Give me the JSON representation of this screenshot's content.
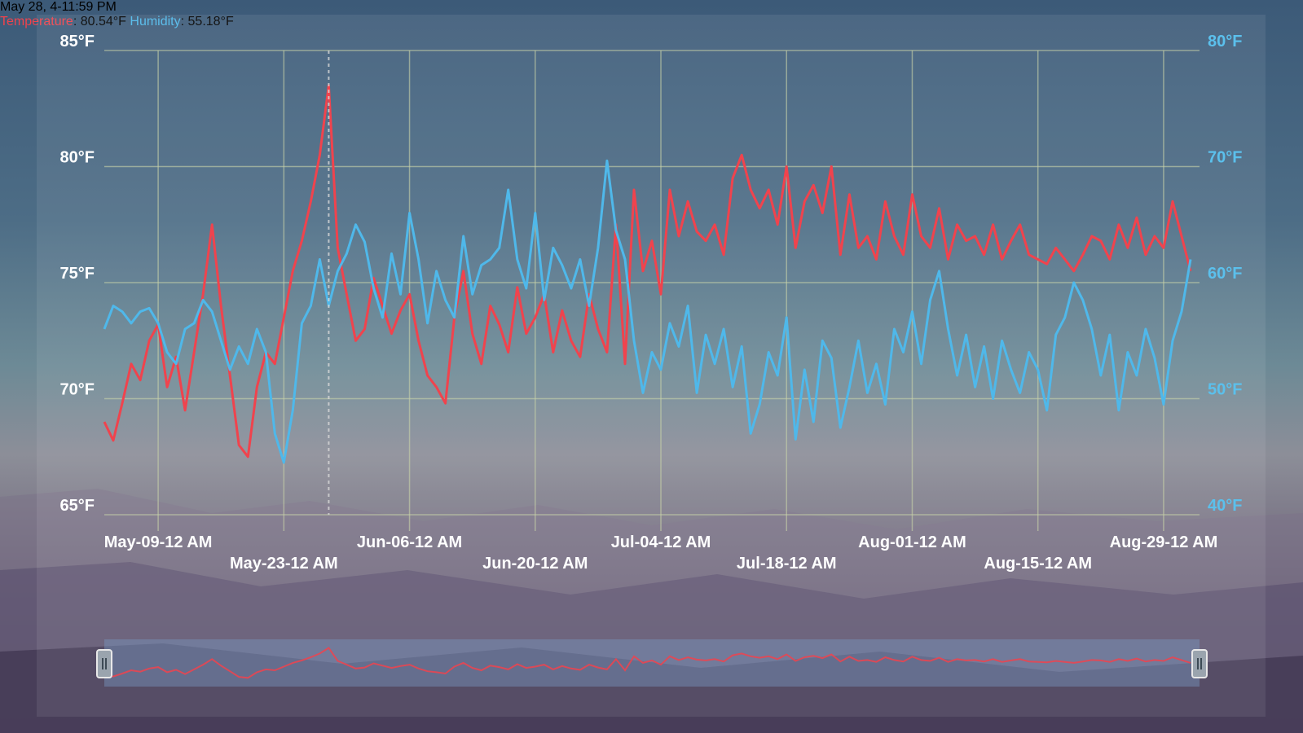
{
  "colors": {
    "temperature": "#f0434d",
    "humidity": "#4fb8ea",
    "grid": "#c9d3a9",
    "text": "#ffffff"
  },
  "readout": {
    "date": "May 28, 4-11:59 PM",
    "temp_label": "Temperature",
    "temp_value": "80.54°F",
    "hum_label": "Humidity",
    "hum_value": "55.18°F"
  },
  "chart_data": {
    "type": "line",
    "x_start": "2024-05-03",
    "x_end": "2024-09-02",
    "y_left": {
      "ticks": [
        "65°F",
        "70°F",
        "75°F",
        "80°F",
        "85°F"
      ],
      "range": [
        65,
        85
      ]
    },
    "y_right": {
      "ticks": [
        "40°F",
        "50°F",
        "60°F",
        "70°F",
        "80°F"
      ],
      "range": [
        40,
        80
      ]
    },
    "x_ticks": [
      {
        "label": "May-09-12 AM",
        "date": "2024-05-09",
        "row": 1
      },
      {
        "label": "May-23-12 AM",
        "date": "2024-05-23",
        "row": 2
      },
      {
        "label": "Jun-06-12 AM",
        "date": "2024-06-06",
        "row": 1
      },
      {
        "label": "Jun-20-12 AM",
        "date": "2024-06-20",
        "row": 2
      },
      {
        "label": "Jul-04-12 AM",
        "date": "2024-07-04",
        "row": 1
      },
      {
        "label": "Jul-18-12 AM",
        "date": "2024-07-18",
        "row": 2
      },
      {
        "label": "Aug-01-12 AM",
        "date": "2024-08-01",
        "row": 1
      },
      {
        "label": "Aug-15-12 AM",
        "date": "2024-08-15",
        "row": 2
      },
      {
        "label": "Aug-29-12 AM",
        "date": "2024-08-29",
        "row": 1
      }
    ],
    "crosshair_date": "2024-05-28",
    "grid": true,
    "series": [
      {
        "name": "Temperature",
        "axis": "left",
        "x": [
          "2024-05-03",
          "2024-05-04",
          "2024-05-05",
          "2024-05-06",
          "2024-05-07",
          "2024-05-08",
          "2024-05-09",
          "2024-05-10",
          "2024-05-11",
          "2024-05-12",
          "2024-05-13",
          "2024-05-14",
          "2024-05-15",
          "2024-05-16",
          "2024-05-17",
          "2024-05-18",
          "2024-05-19",
          "2024-05-20",
          "2024-05-21",
          "2024-05-22",
          "2024-05-23",
          "2024-05-24",
          "2024-05-25",
          "2024-05-26",
          "2024-05-27",
          "2024-05-28",
          "2024-05-29",
          "2024-05-30",
          "2024-05-31",
          "2024-06-01",
          "2024-06-02",
          "2024-06-03",
          "2024-06-04",
          "2024-06-05",
          "2024-06-06",
          "2024-06-07",
          "2024-06-08",
          "2024-06-09",
          "2024-06-10",
          "2024-06-11",
          "2024-06-12",
          "2024-06-13",
          "2024-06-14",
          "2024-06-15",
          "2024-06-16",
          "2024-06-17",
          "2024-06-18",
          "2024-06-19",
          "2024-06-20",
          "2024-06-21",
          "2024-06-22",
          "2024-06-23",
          "2024-06-24",
          "2024-06-25",
          "2024-06-26",
          "2024-06-27",
          "2024-06-28",
          "2024-06-29",
          "2024-06-30",
          "2024-07-01",
          "2024-07-02",
          "2024-07-03",
          "2024-07-04",
          "2024-07-05",
          "2024-07-06",
          "2024-07-07",
          "2024-07-08",
          "2024-07-09",
          "2024-07-10",
          "2024-07-11",
          "2024-07-12",
          "2024-07-13",
          "2024-07-14",
          "2024-07-15",
          "2024-07-16",
          "2024-07-17",
          "2024-07-18",
          "2024-07-19",
          "2024-07-20",
          "2024-07-21",
          "2024-07-22",
          "2024-07-23",
          "2024-07-24",
          "2024-07-25",
          "2024-07-26",
          "2024-07-27",
          "2024-07-28",
          "2024-07-29",
          "2024-07-30",
          "2024-07-31",
          "2024-08-01",
          "2024-08-02",
          "2024-08-03",
          "2024-08-04",
          "2024-08-05",
          "2024-08-06",
          "2024-08-07",
          "2024-08-08",
          "2024-08-09",
          "2024-08-10",
          "2024-08-11",
          "2024-08-12",
          "2024-08-13",
          "2024-08-14",
          "2024-08-15",
          "2024-08-16",
          "2024-08-17",
          "2024-08-18",
          "2024-08-19",
          "2024-08-20",
          "2024-08-21",
          "2024-08-22",
          "2024-08-23",
          "2024-08-24",
          "2024-08-25",
          "2024-08-26",
          "2024-08-27",
          "2024-08-28",
          "2024-08-29",
          "2024-08-30",
          "2024-08-31",
          "2024-09-01"
        ],
        "values": [
          69.0,
          68.2,
          69.8,
          71.5,
          70.8,
          72.5,
          73.2,
          70.5,
          71.8,
          69.5,
          72.0,
          74.5,
          77.5,
          74.0,
          71.0,
          68.0,
          67.5,
          70.5,
          72.0,
          71.5,
          73.5,
          75.5,
          76.8,
          78.5,
          80.5,
          83.5,
          76.5,
          74.5,
          72.5,
          73.0,
          75.2,
          74.0,
          72.8,
          73.8,
          74.5,
          72.5,
          71.0,
          70.5,
          69.8,
          73.5,
          75.5,
          72.8,
          71.5,
          74.0,
          73.2,
          72.0,
          74.8,
          72.8,
          73.5,
          74.5,
          72.0,
          73.8,
          72.5,
          71.8,
          74.5,
          73.0,
          72.0,
          77.5,
          71.5,
          79.0,
          75.5,
          76.8,
          74.5,
          79.0,
          77.0,
          78.5,
          77.2,
          76.8,
          77.5,
          76.2,
          79.5,
          80.5,
          79.0,
          78.2,
          79.0,
          77.5,
          80.0,
          76.5,
          78.5,
          79.2,
          78.0,
          80.0,
          76.2,
          78.8,
          76.5,
          77.0,
          76.0,
          78.5,
          77.0,
          76.2,
          78.8,
          77.0,
          76.5,
          78.2,
          76.0,
          77.5,
          76.8,
          77.0,
          76.2,
          77.5,
          76.0,
          76.8,
          77.5,
          76.2,
          76.0,
          75.8,
          76.5,
          76.0,
          75.5,
          76.2,
          77.0,
          76.8,
          76.0,
          77.5,
          76.5,
          77.8,
          76.2,
          77.0,
          76.5,
          78.5,
          77.0,
          75.5
        ]
      },
      {
        "name": "Humidity",
        "axis": "right",
        "x": [
          "2024-05-03",
          "2024-05-04",
          "2024-05-05",
          "2024-05-06",
          "2024-05-07",
          "2024-05-08",
          "2024-05-09",
          "2024-05-10",
          "2024-05-11",
          "2024-05-12",
          "2024-05-13",
          "2024-05-14",
          "2024-05-15",
          "2024-05-16",
          "2024-05-17",
          "2024-05-18",
          "2024-05-19",
          "2024-05-20",
          "2024-05-21",
          "2024-05-22",
          "2024-05-23",
          "2024-05-24",
          "2024-05-25",
          "2024-05-26",
          "2024-05-27",
          "2024-05-28",
          "2024-05-29",
          "2024-05-30",
          "2024-05-31",
          "2024-06-01",
          "2024-06-02",
          "2024-06-03",
          "2024-06-04",
          "2024-06-05",
          "2024-06-06",
          "2024-06-07",
          "2024-06-08",
          "2024-06-09",
          "2024-06-10",
          "2024-06-11",
          "2024-06-12",
          "2024-06-13",
          "2024-06-14",
          "2024-06-15",
          "2024-06-16",
          "2024-06-17",
          "2024-06-18",
          "2024-06-19",
          "2024-06-20",
          "2024-06-21",
          "2024-06-22",
          "2024-06-23",
          "2024-06-24",
          "2024-06-25",
          "2024-06-26",
          "2024-06-27",
          "2024-06-28",
          "2024-06-29",
          "2024-06-30",
          "2024-07-01",
          "2024-07-02",
          "2024-07-03",
          "2024-07-04",
          "2024-07-05",
          "2024-07-06",
          "2024-07-07",
          "2024-07-08",
          "2024-07-09",
          "2024-07-10",
          "2024-07-11",
          "2024-07-12",
          "2024-07-13",
          "2024-07-14",
          "2024-07-15",
          "2024-07-16",
          "2024-07-17",
          "2024-07-18",
          "2024-07-19",
          "2024-07-20",
          "2024-07-21",
          "2024-07-22",
          "2024-07-23",
          "2024-07-24",
          "2024-07-25",
          "2024-07-26",
          "2024-07-27",
          "2024-07-28",
          "2024-07-29",
          "2024-07-30",
          "2024-07-31",
          "2024-08-01",
          "2024-08-02",
          "2024-08-03",
          "2024-08-04",
          "2024-08-05",
          "2024-08-06",
          "2024-08-07",
          "2024-08-08",
          "2024-08-09",
          "2024-08-10",
          "2024-08-11",
          "2024-08-12",
          "2024-08-13",
          "2024-08-14",
          "2024-08-15",
          "2024-08-16",
          "2024-08-17",
          "2024-08-18",
          "2024-08-19",
          "2024-08-20",
          "2024-08-21",
          "2024-08-22",
          "2024-08-23",
          "2024-08-24",
          "2024-08-25",
          "2024-08-26",
          "2024-08-27",
          "2024-08-28",
          "2024-08-29",
          "2024-08-30",
          "2024-08-31",
          "2024-09-01"
        ],
        "values": [
          56.0,
          58.0,
          57.5,
          56.5,
          57.5,
          57.8,
          56.5,
          54.0,
          53.0,
          56.0,
          56.5,
          58.5,
          57.5,
          55.0,
          52.5,
          54.5,
          53.0,
          56.0,
          54.0,
          47.0,
          44.5,
          49.0,
          56.5,
          58.0,
          62.0,
          58.0,
          61.0,
          62.5,
          65.0,
          63.5,
          59.5,
          57.0,
          62.5,
          59.0,
          66.0,
          62.0,
          56.5,
          61.0,
          58.5,
          57.0,
          64.0,
          59.0,
          61.5,
          62.0,
          63.0,
          68.0,
          62.0,
          59.5,
          66.0,
          58.5,
          63.0,
          61.5,
          59.5,
          62.0,
          58.0,
          63.0,
          70.5,
          64.5,
          62.0,
          55.0,
          50.5,
          54.0,
          52.5,
          56.5,
          54.5,
          58.0,
          50.5,
          55.5,
          53.0,
          56.0,
          51.0,
          54.5,
          47.0,
          49.5,
          54.0,
          52.0,
          57.0,
          46.5,
          52.5,
          48.0,
          55.0,
          53.5,
          47.5,
          51.0,
          55.0,
          50.5,
          53.0,
          49.5,
          56.0,
          54.0,
          57.5,
          53.0,
          58.5,
          61.0,
          56.0,
          52.0,
          55.5,
          51.0,
          54.5,
          50.0,
          55.0,
          52.5,
          50.5,
          54.0,
          52.5,
          49.0,
          55.5,
          57.0,
          60.0,
          58.5,
          56.0,
          52.0,
          55.5,
          49.0,
          54.0,
          52.0,
          56.0,
          53.5,
          49.5,
          55.0,
          57.5,
          62.0
        ]
      }
    ]
  }
}
